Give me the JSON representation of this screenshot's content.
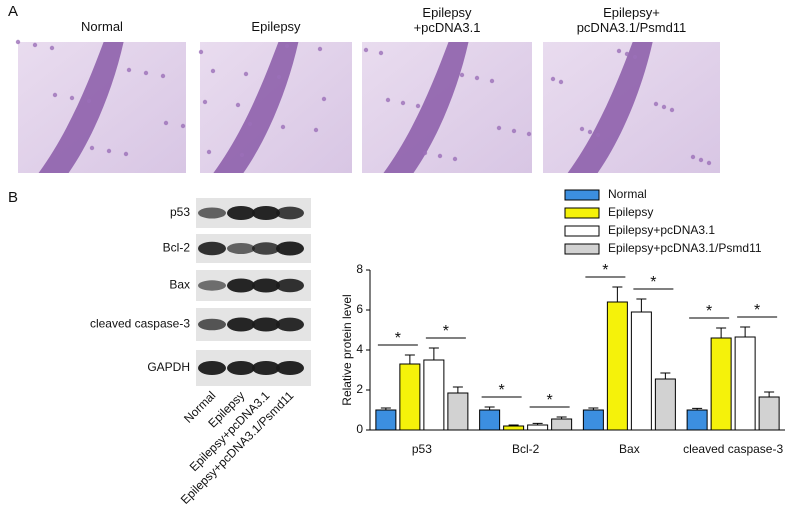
{
  "panel_a": {
    "label": "A",
    "titles": [
      "Normal",
      "Epilepsy",
      "Epilepsy\n+pcDNA3.1",
      "Epilepsy+\npcDNA3.1/Psmd11"
    ]
  },
  "panel_b": {
    "label": "B",
    "proteins": [
      "p53",
      "Bcl-2",
      "Bax",
      "cleaved caspase-3",
      "GAPDH"
    ],
    "lanes": [
      "Normal",
      "Epilepsy",
      "Epilepsy+pcDNA3.1",
      "Epilepsy+pcDNA3.1/Psmd11"
    ]
  },
  "chart_data": {
    "type": "bar",
    "y_label": "Relative protein level",
    "categories": [
      "p53",
      "Bcl-2",
      "Bax",
      "cleaved caspase-3"
    ],
    "series": [
      {
        "name": "Normal",
        "color": "#3c8fe0",
        "values": [
          1.0,
          1.0,
          1.0,
          1.0
        ],
        "errors": [
          0.1,
          0.15,
          0.1,
          0.08
        ]
      },
      {
        "name": "Epilepsy",
        "color": "#f5f20a",
        "values": [
          3.3,
          0.2,
          6.4,
          4.6
        ],
        "errors": [
          0.45,
          0.05,
          0.75,
          0.5
        ]
      },
      {
        "name": "Epilepsy+pcDNA3.1",
        "color": "#ffffff",
        "values": [
          3.5,
          0.25,
          5.9,
          4.65
        ],
        "errors": [
          0.6,
          0.08,
          0.65,
          0.5
        ]
      },
      {
        "name": "Epilepsy+pcDNA3.1/Psmd11",
        "color": "#d2d2d2",
        "values": [
          1.85,
          0.55,
          2.55,
          1.65
        ],
        "errors": [
          0.3,
          0.1,
          0.3,
          0.25
        ]
      }
    ],
    "annotations": [
      "*",
      "*",
      "*",
      "*",
      "*",
      "*",
      "*",
      "*"
    ],
    "ylim": [
      0,
      8
    ],
    "yticks": [
      0,
      2,
      4,
      6,
      8
    ]
  }
}
